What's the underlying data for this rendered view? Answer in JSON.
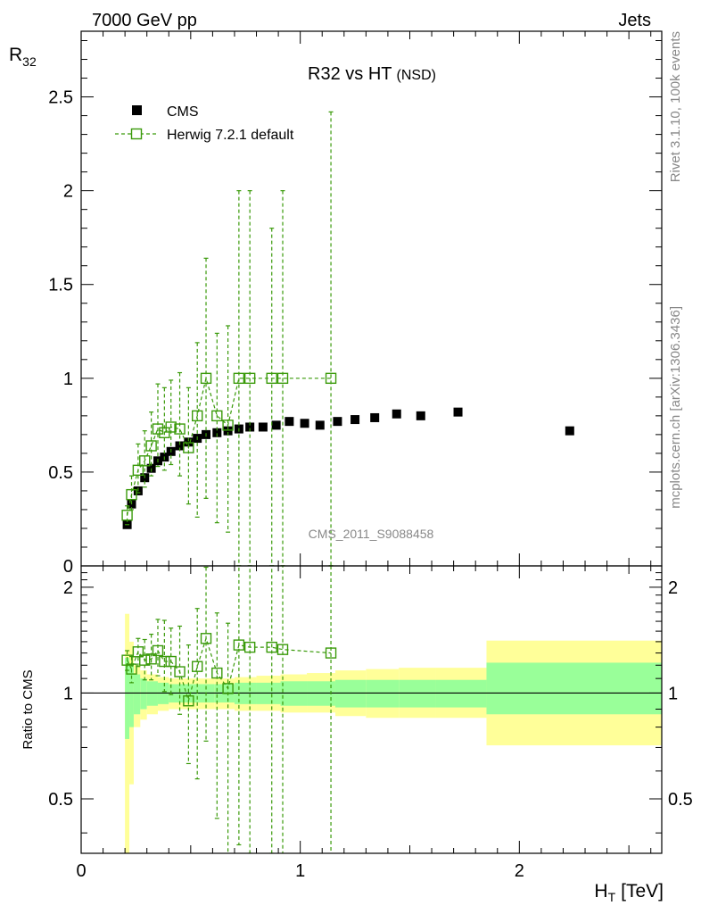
{
  "header": {
    "left": "7000 GeV pp",
    "right": "Jets"
  },
  "side_text": {
    "top": "Rivet 3.1.10,  100k events",
    "bottom": "mcplots.cern.ch [arXiv:1306.3436]"
  },
  "watermark": "CMS_2011_S9088458",
  "colors": {
    "cms": "#000000",
    "herwig": "#3a9a0a",
    "band_inner": "#99ff99",
    "band_outer": "#ffff99"
  },
  "chart_data": [
    {
      "type": "scatter",
      "panel": "main",
      "title": "R32 vs HT",
      "title_suffix": "(NSD)",
      "ylabel": "R",
      "ylabel_sub": "32",
      "xlim": [
        0,
        2.65
      ],
      "ylim": [
        0,
        2.85
      ],
      "yticks": [
        "0",
        "0.5",
        "1",
        "1.5",
        "2",
        "2.5"
      ],
      "ytick_values": [
        0,
        0.5,
        1,
        1.5,
        2,
        2.5
      ],
      "legend_placement": "top-left",
      "series": [
        {
          "name": "CMS",
          "marker": "filled-square",
          "x": [
            0.21,
            0.23,
            0.26,
            0.29,
            0.32,
            0.35,
            0.38,
            0.41,
            0.45,
            0.49,
            0.53,
            0.57,
            0.62,
            0.67,
            0.72,
            0.77,
            0.83,
            0.89,
            0.95,
            1.02,
            1.09,
            1.17,
            1.25,
            1.34,
            1.44,
            1.55,
            1.72,
            2.23
          ],
          "y": [
            0.22,
            0.33,
            0.4,
            0.47,
            0.52,
            0.56,
            0.58,
            0.61,
            0.64,
            0.66,
            0.68,
            0.7,
            0.71,
            0.72,
            0.73,
            0.74,
            0.74,
            0.75,
            0.77,
            0.76,
            0.75,
            0.77,
            0.78,
            0.79,
            0.81,
            0.8,
            0.82,
            0.72
          ]
        },
        {
          "name": "Herwig 7.2.1 default",
          "marker": "open-square",
          "line": "dashed",
          "x": [
            0.21,
            0.23,
            0.26,
            0.29,
            0.32,
            0.35,
            0.38,
            0.41,
            0.45,
            0.49,
            0.53,
            0.57,
            0.62,
            0.67,
            0.72,
            0.77,
            0.87,
            0.92,
            1.14
          ],
          "y": [
            0.27,
            0.38,
            0.51,
            0.56,
            0.64,
            0.73,
            0.71,
            0.74,
            0.73,
            0.63,
            0.8,
            1.0,
            0.8,
            0.75,
            1.0,
            1.0,
            1.0,
            1.0,
            1.0
          ],
          "err_low": [
            0.05,
            0.08,
            0.12,
            0.14,
            0.16,
            0.2,
            0.2,
            0.2,
            0.25,
            0.3,
            0.54,
            0.64,
            0.57,
            0.57,
            1.0,
            1.0,
            1.0,
            1.0,
            1.0
          ],
          "err_high": [
            0.05,
            0.1,
            0.14,
            0.16,
            0.18,
            0.24,
            0.24,
            0.25,
            0.3,
            0.32,
            0.39,
            0.64,
            0.44,
            0.53,
            1.0,
            1.0,
            0.8,
            1.0,
            1.42
          ]
        }
      ]
    },
    {
      "type": "scatter",
      "panel": "ratio",
      "ylabel": "Ratio to CMS",
      "xlabel": "H",
      "xlabel_sub": "T",
      "xlabel_unit": "[TeV]",
      "xlim": [
        0,
        2.65
      ],
      "ylim": [
        0.35,
        2.3
      ],
      "yticks": [
        "0.5",
        "1",
        "2"
      ],
      "ytick_values": [
        0.5,
        1,
        2
      ],
      "xticks": [
        "0",
        "1",
        "2"
      ],
      "xtick_values": [
        0,
        1,
        2
      ],
      "reference_line": 1,
      "bands": {
        "edges": [
          0.2,
          0.22,
          0.24,
          0.27,
          0.3,
          0.35,
          0.4,
          0.46,
          0.53,
          0.61,
          0.7,
          0.8,
          0.91,
          1.03,
          1.16,
          1.3,
          1.45,
          1.62,
          1.85,
          2.65
        ],
        "inner_low": [
          0.74,
          0.8,
          0.87,
          0.9,
          0.92,
          0.93,
          0.94,
          0.94,
          0.94,
          0.94,
          0.93,
          0.93,
          0.92,
          0.92,
          0.91,
          0.91,
          0.91,
          0.91,
          0.87
        ],
        "inner_high": [
          1.26,
          1.2,
          1.13,
          1.1,
          1.08,
          1.07,
          1.06,
          1.06,
          1.06,
          1.06,
          1.07,
          1.07,
          1.08,
          1.08,
          1.09,
          1.09,
          1.09,
          1.09,
          1.22
        ],
        "outer_low": [
          0.35,
          0.55,
          0.8,
          0.84,
          0.87,
          0.89,
          0.9,
          0.9,
          0.9,
          0.9,
          0.89,
          0.89,
          0.88,
          0.88,
          0.86,
          0.85,
          0.85,
          0.85,
          0.71
        ],
        "outer_high": [
          1.68,
          1.4,
          1.2,
          1.16,
          1.13,
          1.11,
          1.1,
          1.1,
          1.1,
          1.1,
          1.11,
          1.12,
          1.13,
          1.14,
          1.16,
          1.17,
          1.18,
          1.18,
          1.41
        ]
      },
      "series": [
        {
          "name": "Herwig 7.2.1 default",
          "marker": "open-square",
          "line": "dashed",
          "x": [
            0.21,
            0.23,
            0.26,
            0.29,
            0.32,
            0.35,
            0.38,
            0.41,
            0.45,
            0.49,
            0.53,
            0.57,
            0.62,
            0.67,
            0.72,
            0.77,
            0.87,
            0.92,
            1.14
          ],
          "y": [
            1.24,
            1.17,
            1.31,
            1.24,
            1.25,
            1.32,
            1.23,
            1.23,
            1.15,
            0.95,
            1.19,
            1.43,
            1.14,
            1.03,
            1.37,
            1.35,
            1.35,
            1.33,
            1.3
          ],
          "err_low": [
            0.08,
            0.1,
            0.12,
            0.15,
            0.16,
            0.2,
            0.22,
            0.24,
            0.28,
            0.32,
            0.62,
            0.7,
            0.7,
            0.7,
            1.0,
            1.0,
            1.0,
            1.0,
            1.0
          ],
          "err_high": [
            0.08,
            0.1,
            0.12,
            0.18,
            0.22,
            0.3,
            0.38,
            0.3,
            0.4,
            0.42,
            0.55,
            0.85,
            0.55,
            0.55,
            1.0,
            1.0,
            1.0,
            1.0,
            1.0
          ]
        }
      ]
    }
  ]
}
